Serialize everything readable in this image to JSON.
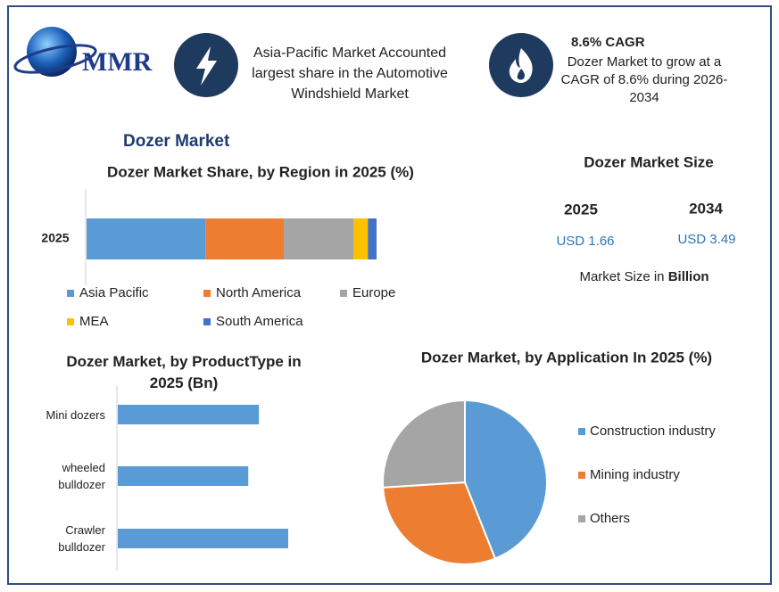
{
  "header": {
    "logo": "MMR",
    "highlight_1": "Asia-Pacific Market Accounted largest share in the Automotive Windshield Market",
    "highlight_2_title": "8.6% CAGR",
    "highlight_2_text": "Dozer Market to grow at a CAGR of 8.6% during 2026-2034"
  },
  "title": "Dozer Market",
  "market_size": {
    "title": "Dozer Market Size",
    "years": [
      "2025",
      "2034"
    ],
    "values": [
      "USD 1.66",
      "USD 3.49"
    ],
    "note": "Market Size in",
    "note_unit": "Billion"
  },
  "chart_data": [
    {
      "type": "bar",
      "orientation": "horizontal",
      "stacked": true,
      "title": "Dozer Market Share, by Region in 2025 (%)",
      "categories": [
        "2025"
      ],
      "series": [
        {
          "name": "Asia Pacific",
          "color": "#5b9bd5",
          "values": [
            41
          ]
        },
        {
          "name": "North America",
          "color": "#ed7d31",
          "values": [
            27
          ]
        },
        {
          "name": "Europe",
          "color": "#a5a5a5",
          "values": [
            24
          ]
        },
        {
          "name": "MEA",
          "color": "#ffc000",
          "values": [
            5
          ]
        },
        {
          "name": "South America",
          "color": "#4472c4",
          "values": [
            3
          ]
        }
      ]
    },
    {
      "type": "bar",
      "orientation": "horizontal",
      "stacked": false,
      "title": "Dozer Market, by ProductType in 2025 (Bn)",
      "categories": [
        "Mini dozers",
        "wheeled bulldozer",
        "Crawler bulldozer"
      ],
      "values": [
        0.53,
        0.49,
        0.64
      ],
      "color": "#5b9bd5"
    },
    {
      "type": "pie",
      "title": "Dozer Market, by Application In 2025 (%)",
      "categories": [
        "Construction industry",
        "Mining industry",
        "Others"
      ],
      "values": [
        44,
        30,
        26
      ],
      "colors": [
        "#5b9bd5",
        "#ed7d31",
        "#a5a5a5"
      ]
    }
  ]
}
